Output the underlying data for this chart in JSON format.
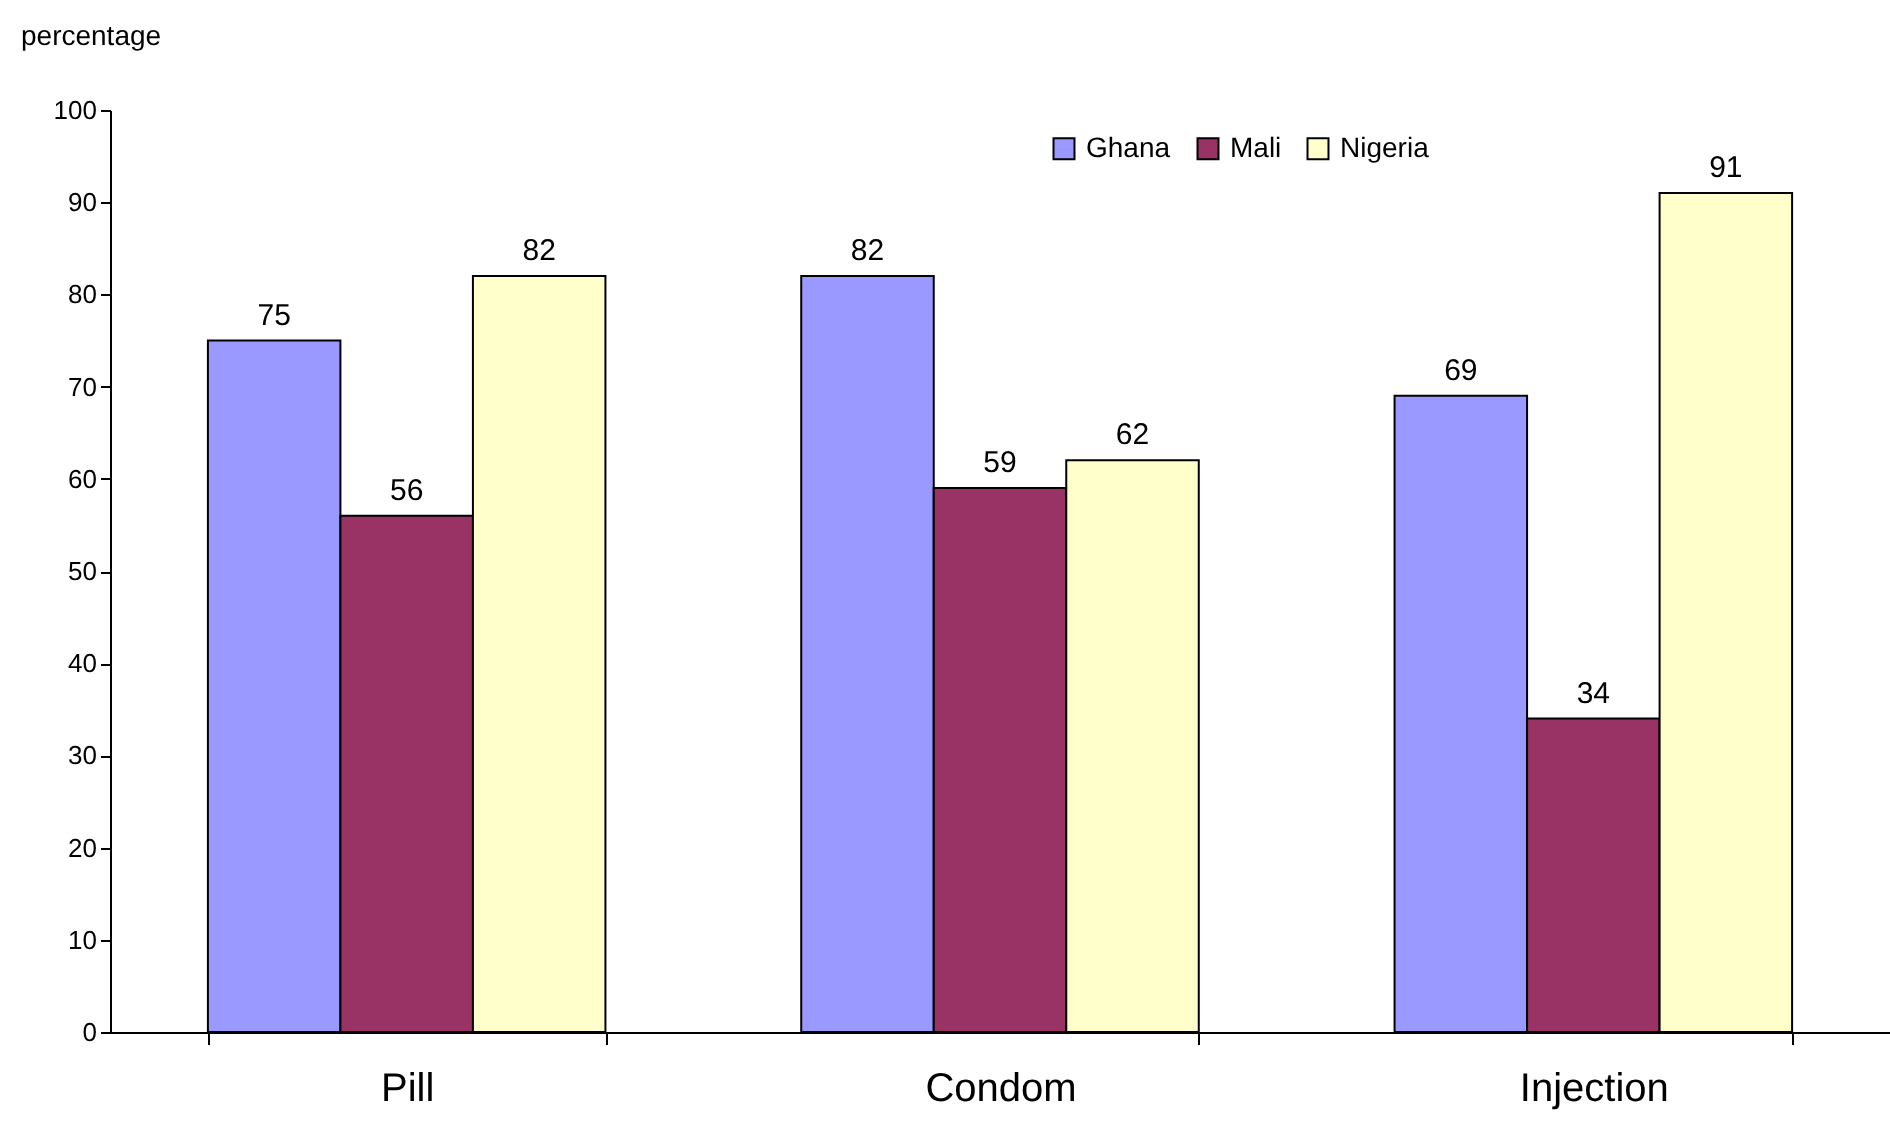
{
  "chart_data": {
    "type": "bar",
    "ylabel": "percentage",
    "categories": [
      "Pill",
      "Condom",
      "Injection"
    ],
    "series": [
      {
        "name": "Ghana",
        "color": "#9999ff",
        "values": [
          75,
          82,
          69
        ]
      },
      {
        "name": "Mali",
        "color": "#993366",
        "values": [
          56,
          59,
          34
        ]
      },
      {
        "name": "Nigeria",
        "color": "#ffffcc",
        "values": [
          82,
          62,
          91
        ]
      }
    ],
    "ylim": [
      0,
      100
    ],
    "yticks": [
      0,
      10,
      20,
      30,
      40,
      50,
      60,
      70,
      80,
      90,
      100
    ],
    "grid": false,
    "legend": "top right",
    "data_labels": true
  }
}
